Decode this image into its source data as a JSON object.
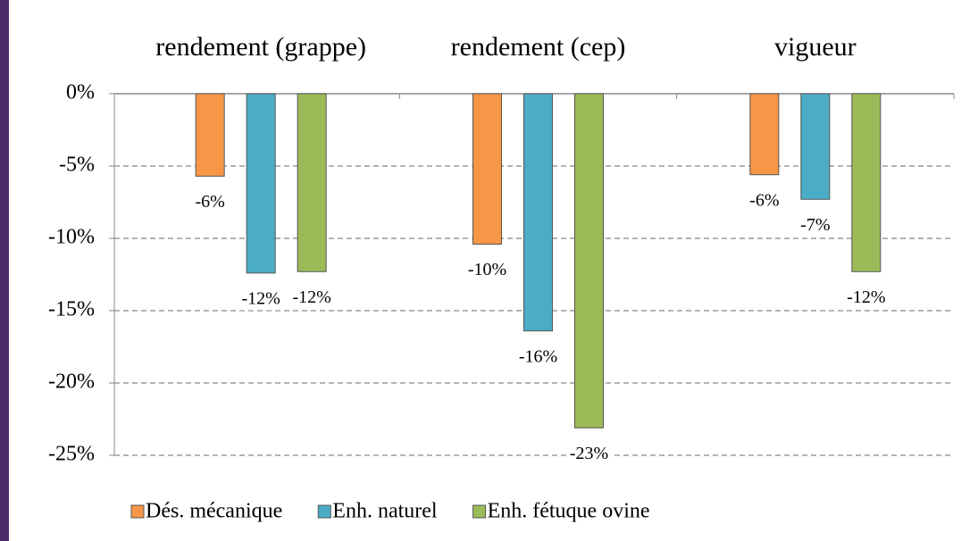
{
  "chart_data": {
    "type": "bar",
    "categories": [
      "rendement (grappe)",
      "rendement (cep)",
      "vigueur"
    ],
    "series": [
      {
        "name": "Dés. mécanique",
        "color": "#f79646",
        "values": [
          -5.7,
          -10.4,
          -5.6
        ],
        "value_labels": [
          "-6%",
          "-10%",
          "-6%"
        ]
      },
      {
        "name": "Enh. naturel",
        "color": "#4bacc6",
        "values": [
          -12.4,
          -16.4,
          -7.3
        ],
        "value_labels": [
          "-12%",
          "-16%",
          "-7%"
        ]
      },
      {
        "name": "Enh. fétuque ovine",
        "color": "#9bbb59",
        "values": [
          -12.3,
          -23.1,
          -12.3
        ],
        "value_labels": [
          "-12%",
          "-23%",
          "-12%"
        ]
      }
    ],
    "ylim": [
      -25,
      0
    ],
    "yticks": [
      {
        "value": 0,
        "label": "0%"
      },
      {
        "value": -5,
        "label": "-5%"
      },
      {
        "value": -10,
        "label": "-10%"
      },
      {
        "value": -15,
        "label": "-15%"
      },
      {
        "value": -20,
        "label": "-20%"
      },
      {
        "value": -25,
        "label": "-25%"
      }
    ],
    "grid": true,
    "legend": "bottom"
  }
}
